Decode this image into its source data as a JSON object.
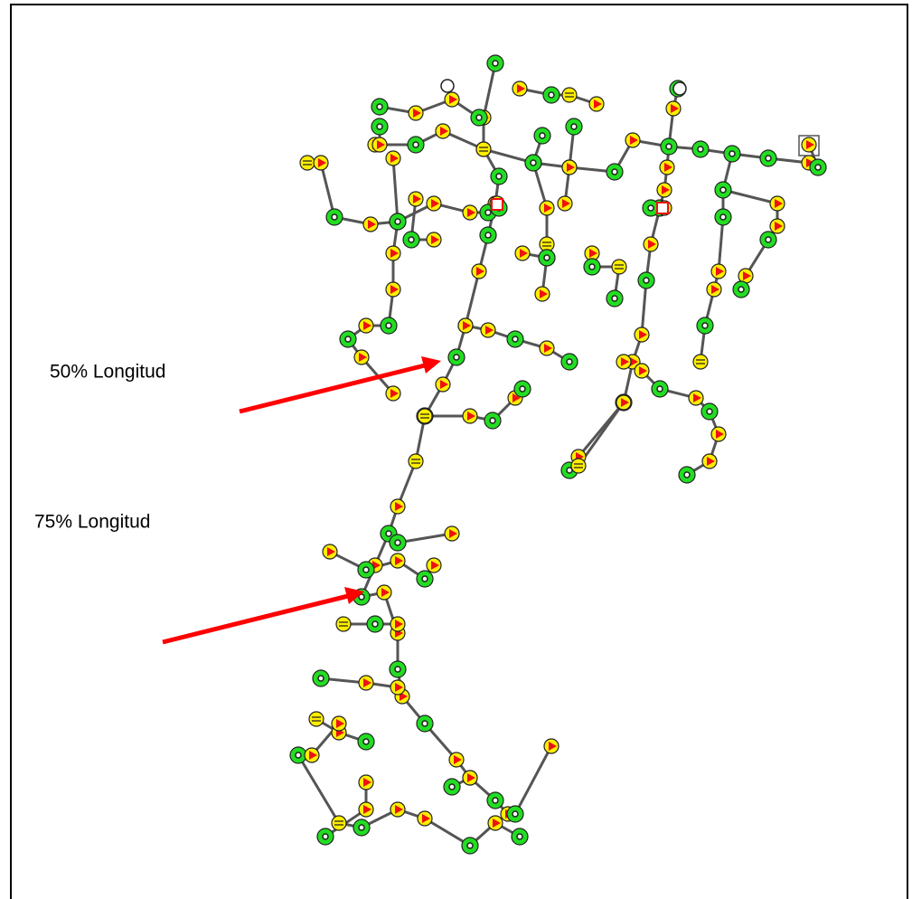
{
  "labels": [
    "50% Longitud",
    "75% Longitud"
  ]
}
